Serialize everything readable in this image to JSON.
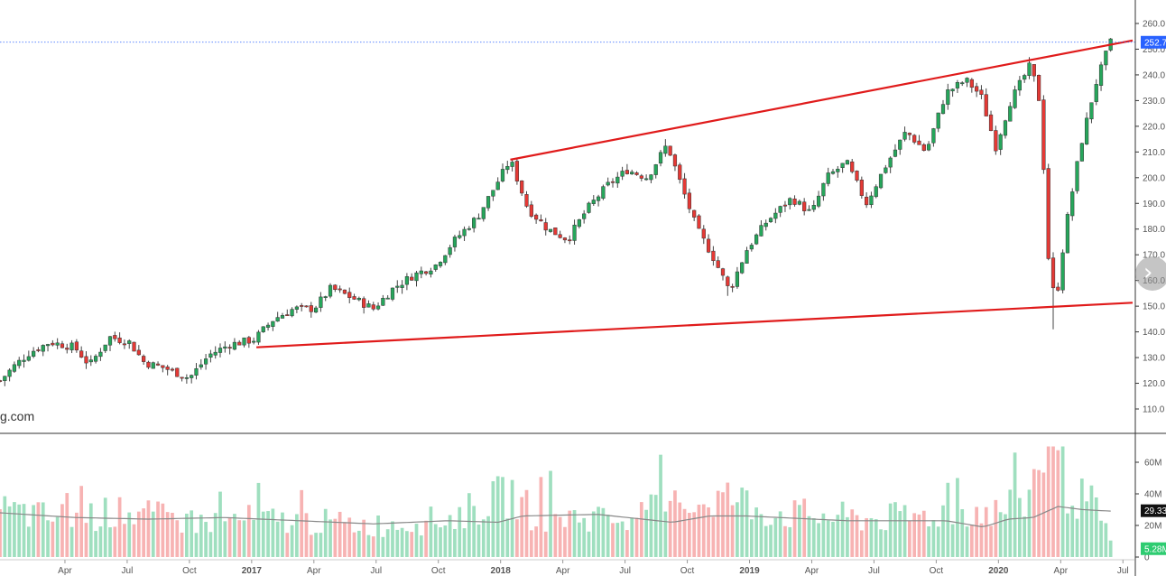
{
  "chart_data": {
    "type": "candlestick",
    "title": "",
    "price_ylim": [
      102,
      266
    ],
    "price_ticks": [
      "110.0",
      "120.0",
      "130.0",
      "140.0",
      "150.0",
      "160.0",
      "170.0",
      "180.0",
      "190.0",
      "200.0",
      "210.0",
      "220.0",
      "230.0",
      "240.0",
      "250.0",
      "260.0"
    ],
    "volume_ylim": [
      0,
      80
    ],
    "volume_ticks": [
      "0",
      "20M",
      "40M",
      "60M"
    ],
    "x_ticks": [
      {
        "label": "Apr",
        "t": 2016.25
      },
      {
        "label": "Jul",
        "t": 2016.5
      },
      {
        "label": "Oct",
        "t": 2016.75
      },
      {
        "label": "2017",
        "t": 2017.0
      },
      {
        "label": "Apr",
        "t": 2017.25
      },
      {
        "label": "Jul",
        "t": 2017.5
      },
      {
        "label": "Oct",
        "t": 2017.75
      },
      {
        "label": "2018",
        "t": 2018.0
      },
      {
        "label": "Apr",
        "t": 2018.25
      },
      {
        "label": "Jul",
        "t": 2018.5
      },
      {
        "label": "Oct",
        "t": 2018.75
      },
      {
        "label": "2019",
        "t": 2019.0
      },
      {
        "label": "Apr",
        "t": 2019.25
      },
      {
        "label": "Jul",
        "t": 2019.5
      },
      {
        "label": "Oct",
        "t": 2019.75
      },
      {
        "label": "2020",
        "t": 2020.0
      },
      {
        "label": "Apr",
        "t": 2020.25
      },
      {
        "label": "Jul",
        "t": 2020.5
      }
    ],
    "close_anchors": [
      [
        2016.0,
        121
      ],
      [
        2016.06,
        127
      ],
      [
        2016.12,
        132
      ],
      [
        2016.2,
        136
      ],
      [
        2016.3,
        134
      ],
      [
        2016.36,
        127
      ],
      [
        2016.44,
        138
      ],
      [
        2016.52,
        136
      ],
      [
        2016.58,
        128
      ],
      [
        2016.66,
        126
      ],
      [
        2016.76,
        122
      ],
      [
        2016.84,
        131
      ],
      [
        2016.92,
        135
      ],
      [
        2017.02,
        137
      ],
      [
        2017.1,
        145
      ],
      [
        2017.18,
        149
      ],
      [
        2017.26,
        149
      ],
      [
        2017.33,
        157
      ],
      [
        2017.42,
        153
      ],
      [
        2017.5,
        149
      ],
      [
        2017.58,
        157
      ],
      [
        2017.66,
        162
      ],
      [
        2017.75,
        166
      ],
      [
        2017.82,
        175
      ],
      [
        2017.92,
        185
      ],
      [
        2018.05,
        207
      ],
      [
        2018.12,
        188
      ],
      [
        2018.2,
        180
      ],
      [
        2018.28,
        176
      ],
      [
        2018.36,
        188
      ],
      [
        2018.44,
        197
      ],
      [
        2018.52,
        203
      ],
      [
        2018.6,
        200
      ],
      [
        2018.68,
        213
      ],
      [
        2018.74,
        196
      ],
      [
        2018.8,
        180
      ],
      [
        2018.86,
        170
      ],
      [
        2018.93,
        156
      ],
      [
        2019.0,
        172
      ],
      [
        2019.08,
        183
      ],
      [
        2019.18,
        192
      ],
      [
        2019.26,
        186
      ],
      [
        2019.32,
        200
      ],
      [
        2019.4,
        206
      ],
      [
        2019.48,
        190
      ],
      [
        2019.56,
        205
      ],
      [
        2019.64,
        218
      ],
      [
        2019.72,
        210
      ],
      [
        2019.8,
        233
      ],
      [
        2019.88,
        238
      ],
      [
        2019.94,
        232
      ],
      [
        2020.0,
        212
      ],
      [
        2020.06,
        230
      ],
      [
        2020.14,
        244
      ],
      [
        2020.18,
        228
      ],
      [
        2020.21,
        170
      ],
      [
        2020.24,
        150
      ],
      [
        2020.28,
        180
      ],
      [
        2020.34,
        212
      ],
      [
        2020.4,
        236
      ],
      [
        2020.46,
        252.7
      ]
    ],
    "volume_points": [
      [
        2016.0,
        30
      ],
      [
        2016.2,
        25
      ],
      [
        2016.5,
        28
      ],
      [
        2016.8,
        22
      ],
      [
        2017.0,
        24
      ],
      [
        2017.3,
        22
      ],
      [
        2017.5,
        20
      ],
      [
        2017.8,
        24
      ],
      [
        2018.05,
        40
      ],
      [
        2018.15,
        26
      ],
      [
        2018.5,
        24
      ],
      [
        2018.78,
        35
      ],
      [
        2018.93,
        38
      ],
      [
        2019.1,
        28
      ],
      [
        2019.5,
        24
      ],
      [
        2019.7,
        26
      ],
      [
        2019.88,
        30
      ],
      [
        2019.98,
        28
      ],
      [
        2020.1,
        30
      ],
      [
        2020.18,
        60
      ],
      [
        2020.22,
        70
      ],
      [
        2020.26,
        50
      ],
      [
        2020.32,
        38
      ],
      [
        2020.4,
        32
      ],
      [
        2020.47,
        5
      ]
    ],
    "volume_ma_points": [
      [
        2016.0,
        28
      ],
      [
        2016.3,
        25
      ],
      [
        2016.6,
        24
      ],
      [
        2016.9,
        25
      ],
      [
        2017.2,
        23
      ],
      [
        2017.5,
        21
      ],
      [
        2017.8,
        23
      ],
      [
        2018.0,
        22
      ],
      [
        2018.1,
        26
      ],
      [
        2018.4,
        27
      ],
      [
        2018.7,
        22
      ],
      [
        2018.85,
        26
      ],
      [
        2019.0,
        26
      ],
      [
        2019.4,
        23
      ],
      [
        2019.8,
        23
      ],
      [
        2019.95,
        19
      ],
      [
        2020.05,
        24
      ],
      [
        2020.15,
        25
      ],
      [
        2020.25,
        32
      ],
      [
        2020.35,
        30
      ],
      [
        2020.47,
        29
      ]
    ],
    "trendlines": [
      {
        "t1": 2018.05,
        "v1": 207,
        "t2": 2020.47,
        "v2": 252
      },
      {
        "t1": 2017.03,
        "v1": 134,
        "t2": 2020.47,
        "v2": 151
      }
    ],
    "last_price_label": "252.7",
    "volume_ma_label": "29.33",
    "last_volume_label": "5.28M",
    "watermark": "g.com",
    "colors": {
      "up": "#26a65b",
      "down": "#e53935",
      "up_volume": "#9fdfbf",
      "down_volume": "#f7b3b3",
      "trendline": "#e01b1b",
      "ma_line": "#888888",
      "last_price_badge": "#2962ff",
      "volume_ma_badge": "#111111",
      "last_volume_badge": "#2ecc71",
      "grid": "#eeeeee",
      "axis": "#333333"
    },
    "grid": false,
    "nav_icon": "chevron-right-icon"
  }
}
